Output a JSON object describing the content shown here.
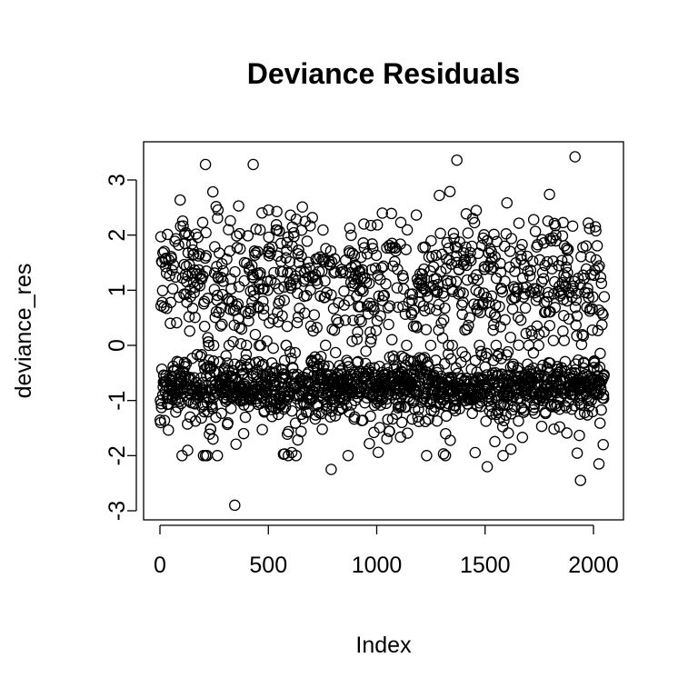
{
  "chart_data": {
    "type": "scatter",
    "title": "Deviance Residuals",
    "xlabel": "Index",
    "ylabel": "deviance_res",
    "xlim": [
      0,
      2090
    ],
    "ylim": [
      -3.05,
      3.55
    ],
    "xticks": [
      0,
      500,
      1000,
      1500,
      2000
    ],
    "yticks": [
      -3,
      -2,
      -1,
      0,
      1,
      2,
      3
    ],
    "xtick_labels": [
      "0",
      "500",
      "1000",
      "1500",
      "2000"
    ],
    "ytick_labels": [
      "-3",
      "-2",
      "-1",
      "0",
      "1",
      "2",
      "3"
    ],
    "marker": "open-circle",
    "grid": false,
    "n_points": 2050,
    "clusters": [
      {
        "label": "negative band",
        "y_center": -0.75,
        "y_spread": 0.22,
        "fraction": 0.62
      },
      {
        "label": "positive band",
        "y_center": 1.2,
        "y_spread": 0.6,
        "fraction": 0.38
      }
    ],
    "notable_points": [
      {
        "x": 210,
        "y": 3.28
      },
      {
        "x": 430,
        "y": 3.28
      },
      {
        "x": 1370,
        "y": 3.36
      },
      {
        "x": 1915,
        "y": 3.42
      },
      {
        "x": 345,
        "y": -2.9
      },
      {
        "x": 790,
        "y": -2.25
      },
      {
        "x": 1940,
        "y": -2.45
      },
      {
        "x": 1510,
        "y": -2.2
      },
      {
        "x": 2025,
        "y": -2.15
      },
      {
        "x": 265,
        "y": -2.0
      },
      {
        "x": 575,
        "y": -1.97
      }
    ]
  }
}
